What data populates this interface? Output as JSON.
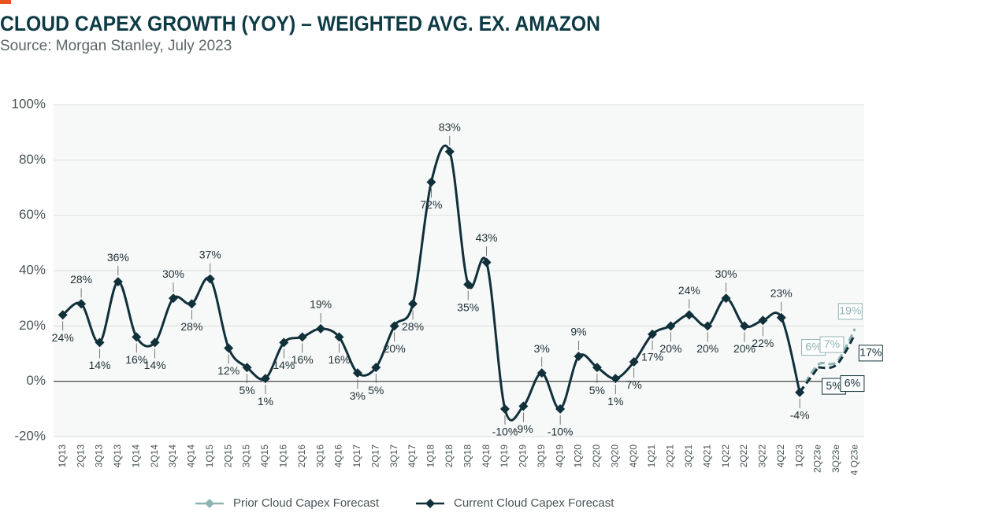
{
  "chart_data": {
    "type": "line",
    "title": "CLOUD CAPEX GROWTH (YOY) – WEIGHTED AVG. EX. AMAZON",
    "subtitle": "Source: Morgan Stanley, July 2023",
    "categories": [
      "1Q13",
      "2Q13",
      "3Q13",
      "4Q13",
      "1Q14",
      "2Q14",
      "3Q14",
      "4Q14",
      "1Q15",
      "2Q15",
      "3Q15",
      "4Q15",
      "1Q16",
      "2Q16",
      "3Q16",
      "4Q16",
      "1Q17",
      "2Q17",
      "3Q17",
      "4Q17",
      "1Q18",
      "2Q18",
      "3Q18",
      "4Q18",
      "1Q19",
      "2Q19",
      "3Q19",
      "4Q19",
      "1Q20",
      "2Q20",
      "3Q20",
      "4Q20",
      "1Q21",
      "2Q21",
      "3Q21",
      "4Q21",
      "1Q22",
      "2Q22",
      "3Q22",
      "4Q22",
      "1Q23",
      "2Q23e",
      "3Q23e",
      "4 Q23e"
    ],
    "series": [
      {
        "name": "Prior Cloud Capex Forecast",
        "color": "#8fb3b3",
        "values": [
          null,
          null,
          null,
          null,
          null,
          null,
          null,
          null,
          null,
          null,
          null,
          null,
          null,
          null,
          null,
          null,
          null,
          null,
          null,
          null,
          null,
          null,
          null,
          null,
          null,
          null,
          null,
          null,
          null,
          null,
          null,
          null,
          null,
          null,
          null,
          null,
          null,
          null,
          null,
          null,
          -4,
          6,
          7,
          19
        ],
        "value_labels": [
          null,
          null,
          null,
          null,
          null,
          null,
          null,
          null,
          null,
          null,
          null,
          null,
          null,
          null,
          null,
          null,
          null,
          null,
          null,
          null,
          null,
          null,
          null,
          null,
          null,
          null,
          null,
          null,
          null,
          null,
          null,
          null,
          null,
          null,
          null,
          null,
          null,
          null,
          null,
          null,
          null,
          "6%",
          "7%",
          "19%"
        ]
      },
      {
        "name": "Current Cloud Capex Forecast",
        "color": "#10303a",
        "values": [
          24,
          28,
          14,
          36,
          16,
          14,
          30,
          28,
          37,
          12,
          5,
          1,
          14,
          16,
          19,
          16,
          3,
          5,
          20,
          28,
          72,
          83,
          35,
          43,
          -10,
          -9,
          3,
          -10,
          9,
          5,
          1,
          7,
          17,
          20,
          24,
          20,
          30,
          20,
          22,
          23,
          -4,
          5,
          6,
          17
        ],
        "value_labels": [
          "24%",
          "28%",
          "14%",
          "36%",
          "16%",
          "14%",
          "30%",
          "28%",
          "37%",
          "12%",
          "5%",
          "1%",
          "14%",
          "16%",
          "19%",
          "16%",
          "3%",
          "5%",
          "20%",
          "28%",
          "72%",
          "83%",
          "35%",
          "43%",
          "-10%",
          "-9%",
          "3%",
          "-10%",
          "9%",
          "5%",
          "1%",
          "7%",
          "17%",
          "20%",
          "24%",
          "20%",
          "30%",
          "20%",
          "22%",
          "23%",
          "-4%",
          "5%",
          "6%",
          "17%"
        ]
      }
    ],
    "ylim": [
      -20,
      100
    ],
    "yticks": [
      {
        "value": -20,
        "label": "-20%"
      },
      {
        "value": 0,
        "label": "0%"
      },
      {
        "value": 20,
        "label": "20%"
      },
      {
        "value": 40,
        "label": "40%"
      },
      {
        "value": 60,
        "label": "60%"
      },
      {
        "value": 80,
        "label": "80%"
      },
      {
        "value": 100,
        "label": "100%"
      }
    ],
    "grid": true,
    "legend": "bottom"
  }
}
